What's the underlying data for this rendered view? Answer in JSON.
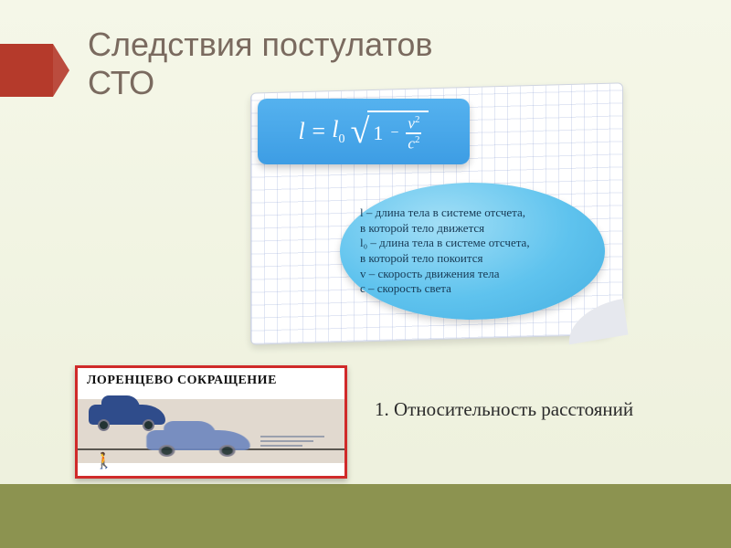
{
  "colors": {
    "bg_top": "#f5f7e8",
    "bg_bottom": "#edf0dc",
    "footer_band": "#8c9350",
    "marker": "#b53a2b",
    "title_text": "#7a6a5f",
    "paper_bg": "#ffffff",
    "paper_grid": "rgba(140,160,210,.25)",
    "formula_bg_top": "#55b2ef",
    "formula_bg_bottom": "#3d9de4",
    "formula_text": "#ffffff",
    "bubble_center": "#a3dff6",
    "bubble_mid": "#5fc3ee",
    "bubble_edge": "#45aee1",
    "bubble_text": "#173a55",
    "lorentz_border": "#d02a2a",
    "car_dark": "#2f4c8b",
    "car_light": "#6f88bf",
    "road": "#e1d9cf",
    "caption_text": "#2b2b2b"
  },
  "title": {
    "line1": "Следствия постулатов",
    "line2": "СТО",
    "fontsize": 36
  },
  "formula": {
    "lhs": "l",
    "eq": "=",
    "l0": "l",
    "l0_sub": "0",
    "one": "1",
    "minus": "−",
    "num": "v",
    "num_sup": "2",
    "den": "c",
    "den_sup": "2"
  },
  "legend": {
    "l": "l – длина тела в системе отсчета,",
    "l_b": "в которой тело движется",
    "l0": "l₀ – длина тела в системе отсчета,",
    "l0_b": "в которой тело покоится",
    "v": "v – скорость движения тела",
    "c": "c – скорость света",
    "fontsize": 13
  },
  "lorentz": {
    "title": "ЛОРЕНЦЕВО СОКРАЩЕНИЕ",
    "man_glyph": "🚶"
  },
  "caption": {
    "text": "1. Относительность расстояний",
    "fontsize": 21
  }
}
